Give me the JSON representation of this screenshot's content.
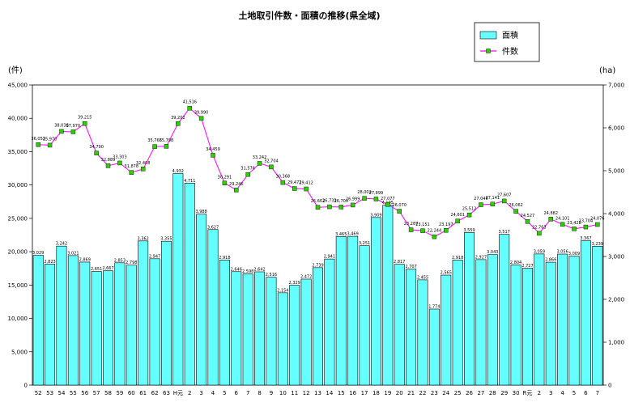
{
  "chart_data": {
    "type": "bar",
    "title": "土地取引件数・面積の推移(県全域)",
    "left_unit": "(件)",
    "right_unit": "(ha)",
    "y_left_ticks": [
      "0",
      "5,000",
      "10,000",
      "15,000",
      "20,000",
      "25,000",
      "30,000",
      "35,000",
      "40,000",
      "45,000"
    ],
    "y_right_ticks": [
      "0",
      "1,000",
      "2,000",
      "3,000",
      "4,000",
      "5,000",
      "6,000",
      "7,000"
    ],
    "ylim_left": [
      0,
      45000
    ],
    "ylim_right": [
      0,
      7000
    ],
    "categories": [
      "52",
      "53",
      "54",
      "55",
      "56",
      "57",
      "58",
      "59",
      "60",
      "61",
      "62",
      "63",
      "H元",
      "2",
      "3",
      "4",
      "5",
      "6",
      "7",
      "8",
      "9",
      "10",
      "11",
      "12",
      "13",
      "14",
      "15",
      "16",
      "17",
      "18",
      "19",
      "20",
      "21",
      "22",
      "23",
      "24",
      "25",
      "26",
      "27",
      "28",
      "29",
      "30",
      "R元",
      "2",
      "3",
      "4",
      "5",
      "6",
      "7"
    ],
    "series": [
      {
        "name": "面積",
        "type": "bar",
        "axis": "right",
        "color": "#66ffff",
        "values": [
          3029,
          2823,
          3242,
          3021,
          2869,
          2651,
          2667,
          2853,
          2798,
          3362,
          2947,
          3355,
          4932,
          4711,
          3988,
          3627,
          2918,
          2646,
          2598,
          2642,
          2516,
          2154,
          2329,
          2472,
          2739,
          2941,
          3465,
          3469,
          3251,
          3909,
          4195,
          2817,
          2707,
          2455,
          1774,
          2565,
          2918,
          3559,
          2927,
          3043,
          3517,
          2804,
          2727,
          3059,
          2866,
          3056,
          3009,
          3367,
          3239
        ],
        "labels": [
          "3,029",
          "2,823",
          "3,242",
          "3,021",
          "2,869",
          "2,651",
          "2,667",
          "2,853",
          "2,798",
          "3,362",
          "2,947",
          "3,355",
          "4,932",
          "4,711",
          "3,988",
          "3,627",
          "2,918",
          "2,646",
          "2,598",
          "2,642",
          "2,516",
          "2,154",
          "2,329",
          "2,472",
          "2,739",
          "2,941",
          "3,465",
          "3,469",
          "3,251",
          "3,909",
          "4,195",
          "2,817",
          "2,707",
          "2,455",
          "1,774",
          "2,565",
          "2,918",
          "3,559",
          "2,927",
          "3,043",
          "3,517",
          "2,804",
          "2,727",
          "3,059",
          "2,866",
          "3,056",
          "3,009",
          "3,367",
          "3,239"
        ]
      },
      {
        "name": "件数",
        "type": "line",
        "axis": "left",
        "color": "#ff00ff",
        "marker_color": "#33cc00",
        "values": [
          36052,
          35970,
          38036,
          37970,
          39215,
          34790,
          32889,
          33303,
          31878,
          32408,
          35766,
          35798,
          39202,
          41516,
          39990,
          34459,
          30291,
          29246,
          31576,
          33242,
          32704,
          30368,
          29472,
          29412,
          26662,
          26733,
          26700,
          26999,
          28002,
          27899,
          27077,
          26070,
          23287,
          23151,
          22244,
          23197,
          24601,
          25512,
          27046,
          27141,
          27607,
          26062,
          24527,
          22763,
          24882,
          24101,
          23428,
          23704,
          24076
        ],
        "labels": [
          "36,052",
          "35,970",
          "38,036",
          "37,970",
          "39,215",
          "34,790",
          "32,889",
          "33,303",
          "31,878",
          "32,408",
          "35,766",
          "35,798",
          "39,202",
          "41,516",
          "39,990",
          "34,459",
          "30,291",
          "29,246",
          "31,576",
          "33,242",
          "32,704",
          "30,368",
          "29,472",
          "29,412",
          "26,662",
          "26,733",
          "26,700",
          "26,999",
          "28,002",
          "27,899",
          "27,077",
          "26,070",
          "23,287",
          "23,151",
          "22,244",
          "23,197",
          "24,601",
          "25,512",
          "27,046",
          "27,141",
          "27,607",
          "26,062",
          "24,527",
          "22,763",
          "24,882",
          "24,101",
          "23,428",
          "23,704",
          "24,076"
        ]
      }
    ],
    "legend": {
      "placement": "top-right",
      "entries": [
        "面積",
        "件数"
      ]
    },
    "grid": false
  }
}
